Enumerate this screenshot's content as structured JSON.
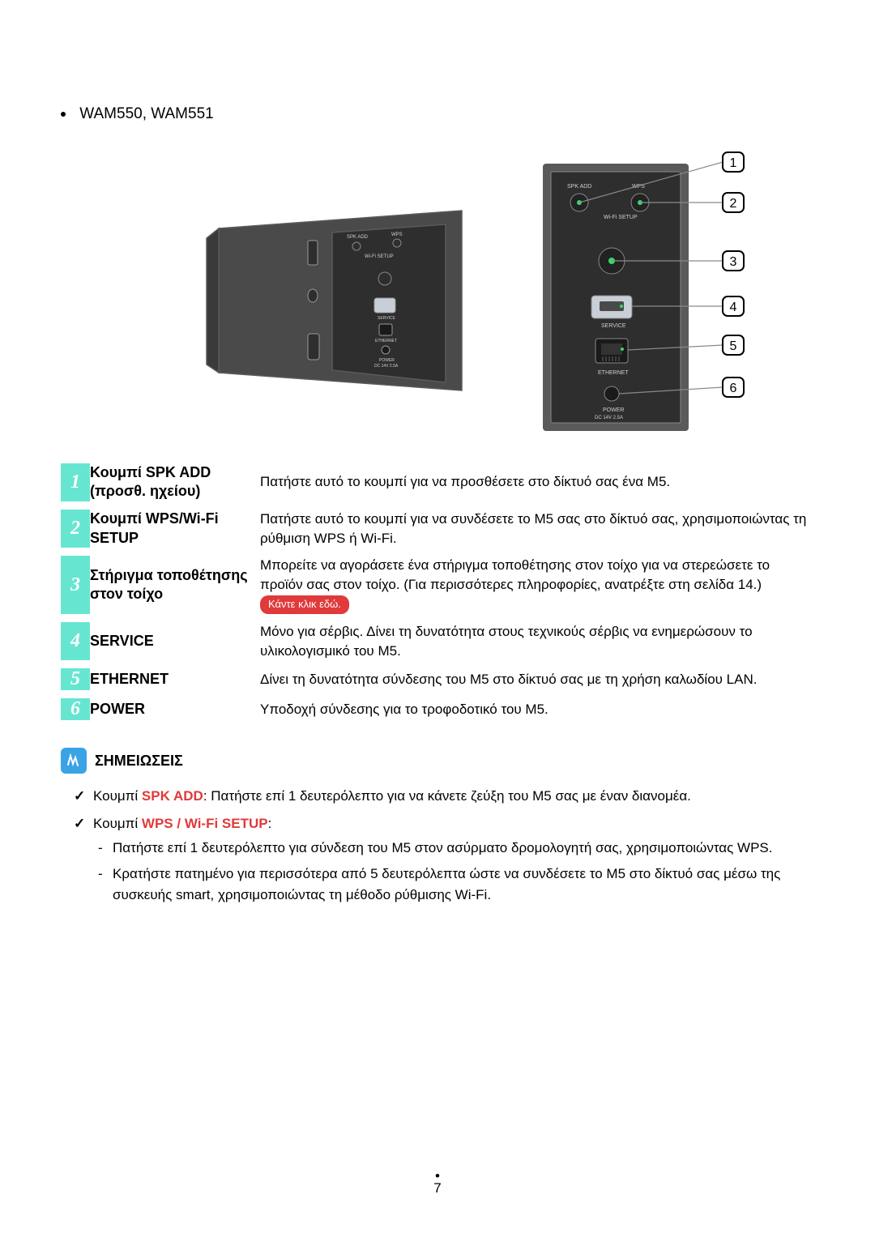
{
  "model_line": "WAM550, WAM551",
  "callouts": [
    "1",
    "2",
    "3",
    "4",
    "5",
    "6"
  ],
  "diagram": {
    "colors": {
      "outline": "#5a5a5a",
      "body_fill": "#4a4a4a",
      "body_fill_dark": "#3a3a3a",
      "panel_fill": "#2e2e2e",
      "led_green": "#3ad66e",
      "label_text": "#cfcfcf",
      "callout_box": "#000000",
      "guide_line": "#8a8a8a"
    },
    "small_labels": {
      "spk_add": "SPK ADD",
      "wps": "WPS",
      "wifi_setup": "Wi-Fi SETUP",
      "service": "SERVICE",
      "ethernet": "ETHERNET",
      "power": "POWER",
      "power_sub": "DC 14V 2.5A"
    }
  },
  "rows": [
    {
      "num": "1",
      "name": "Κουμπί SPK ADD (προσθ. ηχείου)",
      "desc": "Πατήστε αυτό το κουμπί για να προσθέσετε στο δίκτυό σας ένα M5."
    },
    {
      "num": "2",
      "name": "Κουμπί WPS/Wi-Fi SETUP",
      "desc": "Πατήστε αυτό το κουμπί για να συνδέσετε το M5 σας στο δίκτυό σας, χρησιμοποιώντας τη ρύθμιση WPS ή Wi-Fi."
    },
    {
      "num": "3",
      "name": "Στήριγμα τοποθέτησης στον τοίχο",
      "desc": "Μπορείτε να αγοράσετε ένα στήριγμα τοποθέτησης στον τοίχο για να στερεώσετε το προϊόν σας στον τοίχο. (Για περισσότερες πληροφορίες, ανατρέξτε στη σελίδα 14.)",
      "link": "Κάντε κλικ εδώ."
    },
    {
      "num": "4",
      "name": "SERVICE",
      "desc": "Μόνο για σέρβις. Δίνει τη δυνατότητα στους τεχνικούς σέρβις να ενημερώσουν το υλικολογισμικό του M5."
    },
    {
      "num": "5",
      "name": "ETHERNET",
      "desc": "Δίνει τη δυνατότητα σύνδεσης του M5 στο δίκτυό σας με τη χρήση καλωδίου LAN."
    },
    {
      "num": "6",
      "name": "POWER",
      "desc": "Υποδοχή σύνδεσης για το τροφοδοτικό του M5."
    }
  ],
  "notes": {
    "title": "ΣΗΜΕΙΩΣΕΙΣ",
    "items": [
      {
        "prefix": "Κουμπί ",
        "keyword": "SPK ADD",
        "after": ": Πατήστε επί 1 δευτερόλεπτο για να κάνετε ζεύξη του M5 σας με έναν διανομέα."
      },
      {
        "prefix": "Κουμπί ",
        "keyword": "WPS / Wi-Fi SETUP",
        "after": ":",
        "sub": [
          "Πατήστε επί 1 δευτερόλεπτο για σύνδεση του M5 στον ασύρματο δρομολογητή σας, χρησιμοποιώντας WPS.",
          "Κρατήστε πατημένο για περισσότερα από 5 δευτερόλεπτα ώστε να συνδέσετε το M5 στο δίκτυό σας μέσω της συσκευής smart, χρησιμοποιώντας τη μέθοδο ρύθμισης Wi-Fi."
        ]
      }
    ]
  },
  "page": "7",
  "style": {
    "accent": "#66e6d1",
    "num_text": "#ffffff",
    "link_bg": "#e03a3a",
    "notes_icon_bg": "#3aa3e6",
    "keyword_color": "#e03a3a",
    "body_fontsize": 17,
    "name_fontsize": 18
  }
}
